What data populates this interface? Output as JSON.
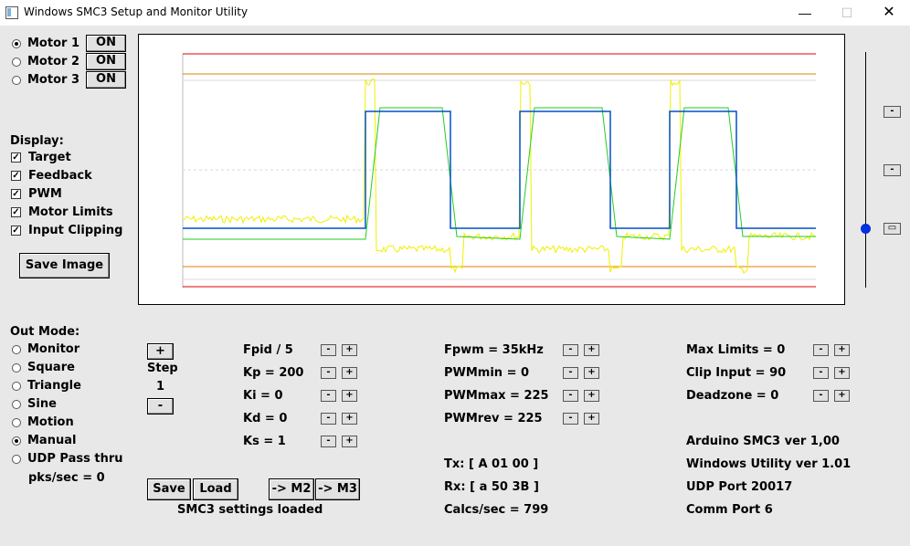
{
  "window": {
    "title": "Windows SMC3 Setup and Monitor Utility",
    "minimize": "—",
    "maximize": "☐",
    "close": "✕"
  },
  "motors": [
    {
      "label": "Motor 1",
      "selected": true,
      "button": "ON"
    },
    {
      "label": "Motor 2",
      "selected": false,
      "button": "ON"
    },
    {
      "label": "Motor 3",
      "selected": false,
      "button": "ON"
    }
  ],
  "display": {
    "heading": "Display:",
    "options": [
      {
        "label": "Target",
        "checked": true
      },
      {
        "label": "Feedback",
        "checked": true
      },
      {
        "label": "PWM",
        "checked": true
      },
      {
        "label": "Motor Limits",
        "checked": true
      },
      {
        "label": "Input Clipping",
        "checked": true
      }
    ],
    "save_image": "Save Image"
  },
  "out_mode": {
    "heading": "Out Mode:",
    "options": [
      {
        "label": "Monitor",
        "selected": false
      },
      {
        "label": "Square",
        "selected": false
      },
      {
        "label": "Triangle",
        "selected": false
      },
      {
        "label": "Sine",
        "selected": false
      },
      {
        "label": "Motion",
        "selected": false
      },
      {
        "label": "Manual",
        "selected": true
      },
      {
        "label": "UDP Pass thru",
        "selected": false
      }
    ],
    "pks": "pks/sec = 0"
  },
  "step": {
    "plus": "+",
    "label": "Step",
    "value": "1",
    "minus": "-"
  },
  "params_col1": [
    "Fpid / 5",
    "Kp = 200",
    "Ki = 0",
    "Kd = 0",
    "Ks = 1"
  ],
  "params_col2": [
    "Fpwm = 35kHz",
    "PWMmin = 0",
    "PWMmax = 225",
    "PWMrev = 225"
  ],
  "params_col3": [
    "Max Limits = 0",
    "Clip Input = 90",
    "Deadzone = 0"
  ],
  "comm": {
    "tx": "Tx: [ A 01 00 ]",
    "rx": "Rx: [ a 50 3B ]",
    "calcs": "Calcs/sec = 799"
  },
  "info": {
    "arduino": "Arduino SMC3 ver 1,00",
    "utility": "Windows Utility ver 1.01",
    "udp": "UDP Port 20017",
    "comm_port": "Comm Port 6"
  },
  "buttons": {
    "save": "Save",
    "load": "Load",
    "to_m2": "-> M2",
    "to_m3": "-> M3",
    "minus": "-",
    "plus": "+"
  },
  "status": "SMC3 settings loaded",
  "slider_buttons": [
    "-",
    "-",
    "▭"
  ],
  "chart_data": {
    "type": "line",
    "colors": {
      "target": "#0050c8",
      "feedback": "#22cc22",
      "pwm": "#f0f000",
      "motor_limits": "#e00000",
      "input_clipping": "#e08000"
    },
    "target_high_intervals": [
      [
        400,
        493
      ],
      [
        569,
        668
      ],
      [
        733,
        806
      ]
    ],
    "feedback_high_intervals": [
      [
        400,
        500
      ],
      [
        569,
        675
      ],
      [
        733,
        813
      ]
    ]
  }
}
